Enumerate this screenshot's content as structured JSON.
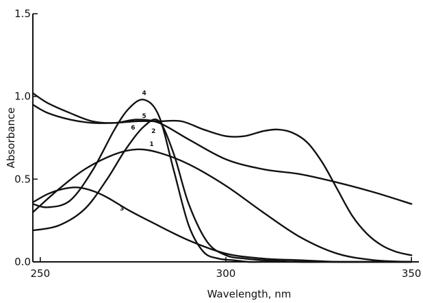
{
  "chart_data": {
    "type": "line",
    "title": "",
    "xlabel": "Wavelength, nm",
    "ylabel": "Absorbance",
    "xlim": [
      248,
      352
    ],
    "ylim": [
      0.0,
      1.5
    ],
    "x_ticks": [
      250,
      300,
      350
    ],
    "x_tick_labels": [
      "250",
      "300",
      "350"
    ],
    "y_ticks": [
      0.0,
      0.5,
      1.0,
      1.5
    ],
    "y_tick_labels": [
      "0.0",
      "0.5",
      "1.0",
      "1.5"
    ],
    "grid": false,
    "legend": "none",
    "series": [
      {
        "name": "1",
        "x": [
          248,
          255,
          262,
          270,
          276,
          282,
          290,
          300,
          310,
          320,
          330,
          340,
          350
        ],
        "y": [
          0.3,
          0.44,
          0.56,
          0.65,
          0.68,
          0.66,
          0.59,
          0.46,
          0.3,
          0.15,
          0.05,
          0.01,
          0.0
        ]
      },
      {
        "name": "2",
        "x": [
          248,
          255,
          262,
          268,
          273,
          278,
          282,
          286,
          290,
          295,
          300,
          305,
          310,
          320,
          330,
          340,
          350
        ],
        "y": [
          0.19,
          0.22,
          0.32,
          0.5,
          0.68,
          0.82,
          0.85,
          0.65,
          0.35,
          0.12,
          0.04,
          0.02,
          0.01,
          0.0,
          0.0,
          0.0,
          0.0
        ]
      },
      {
        "name": "3",
        "x": [
          248,
          252,
          256,
          260,
          264,
          268,
          274,
          280,
          290,
          300,
          310,
          320,
          330,
          340,
          350
        ],
        "y": [
          0.36,
          0.41,
          0.44,
          0.45,
          0.43,
          0.39,
          0.31,
          0.24,
          0.13,
          0.05,
          0.02,
          0.01,
          0.0,
          0.0,
          0.0
        ]
      },
      {
        "name": "4",
        "x": [
          248,
          252,
          258,
          264,
          270,
          274,
          278,
          282,
          286,
          290,
          294,
          298,
          302,
          306,
          310,
          320,
          330,
          350
        ],
        "y": [
          0.35,
          0.33,
          0.37,
          0.55,
          0.8,
          0.93,
          0.98,
          0.88,
          0.55,
          0.22,
          0.06,
          0.02,
          0.01,
          0.0,
          0.0,
          0.0,
          0.0,
          0.0
        ]
      },
      {
        "name": "5",
        "x": [
          248,
          252,
          258,
          264,
          270,
          276,
          282,
          290,
          300,
          310,
          320,
          330,
          340,
          350
        ],
        "y": [
          1.02,
          0.96,
          0.9,
          0.85,
          0.84,
          0.86,
          0.84,
          0.74,
          0.62,
          0.56,
          0.53,
          0.48,
          0.42,
          0.35
        ]
      },
      {
        "name": "6",
        "x": [
          248,
          252,
          258,
          264,
          270,
          276,
          282,
          288,
          294,
          300,
          305,
          310,
          314,
          318,
          322,
          326,
          330,
          334,
          338,
          342,
          346,
          350
        ],
        "y": [
          0.95,
          0.9,
          0.86,
          0.84,
          0.84,
          0.85,
          0.85,
          0.85,
          0.8,
          0.76,
          0.76,
          0.79,
          0.8,
          0.78,
          0.72,
          0.6,
          0.44,
          0.28,
          0.17,
          0.1,
          0.06,
          0.04
        ]
      }
    ],
    "annotations": [
      {
        "text": "1",
        "x": 280,
        "y": 0.7
      },
      {
        "text": "2",
        "x": 280.5,
        "y": 0.78
      },
      {
        "text": "3",
        "x": 272,
        "y": 0.31
      },
      {
        "text": "4",
        "x": 278,
        "y": 1.01
      },
      {
        "text": "5",
        "x": 278,
        "y": 0.87
      },
      {
        "text": "6",
        "x": 275,
        "y": 0.8
      }
    ]
  }
}
